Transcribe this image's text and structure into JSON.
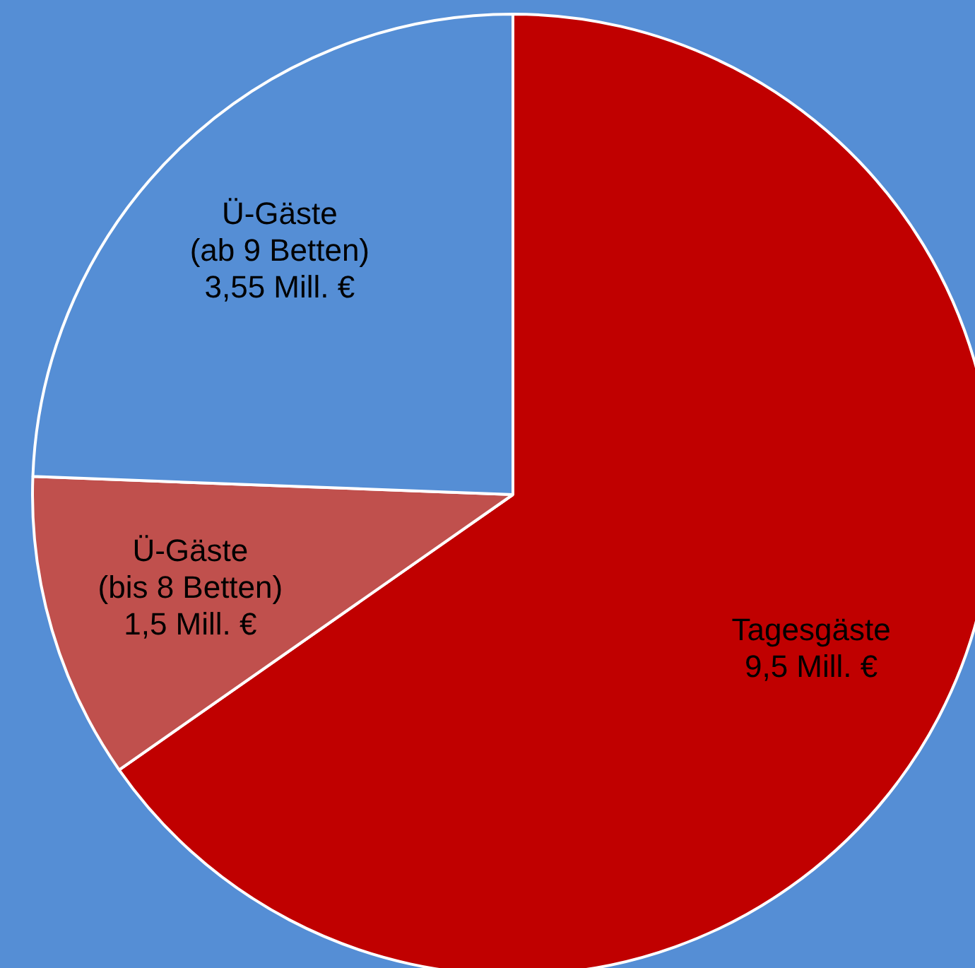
{
  "chart_data": {
    "type": "pie",
    "categories": [
      "Tagesgäste",
      "Ü-Gäste\n(bis 8 Betten)",
      "Ü-Gäste\n(ab 9 Betten)"
    ],
    "values": [
      9.5,
      1.5,
      3.55
    ],
    "colors": [
      "#c00000",
      "#c0504d",
      "#558ed5"
    ],
    "value_labels": [
      "9,5 Mill. €",
      "1,5 Mill. €",
      "3,55 Mill. €"
    ],
    "legend": false
  }
}
